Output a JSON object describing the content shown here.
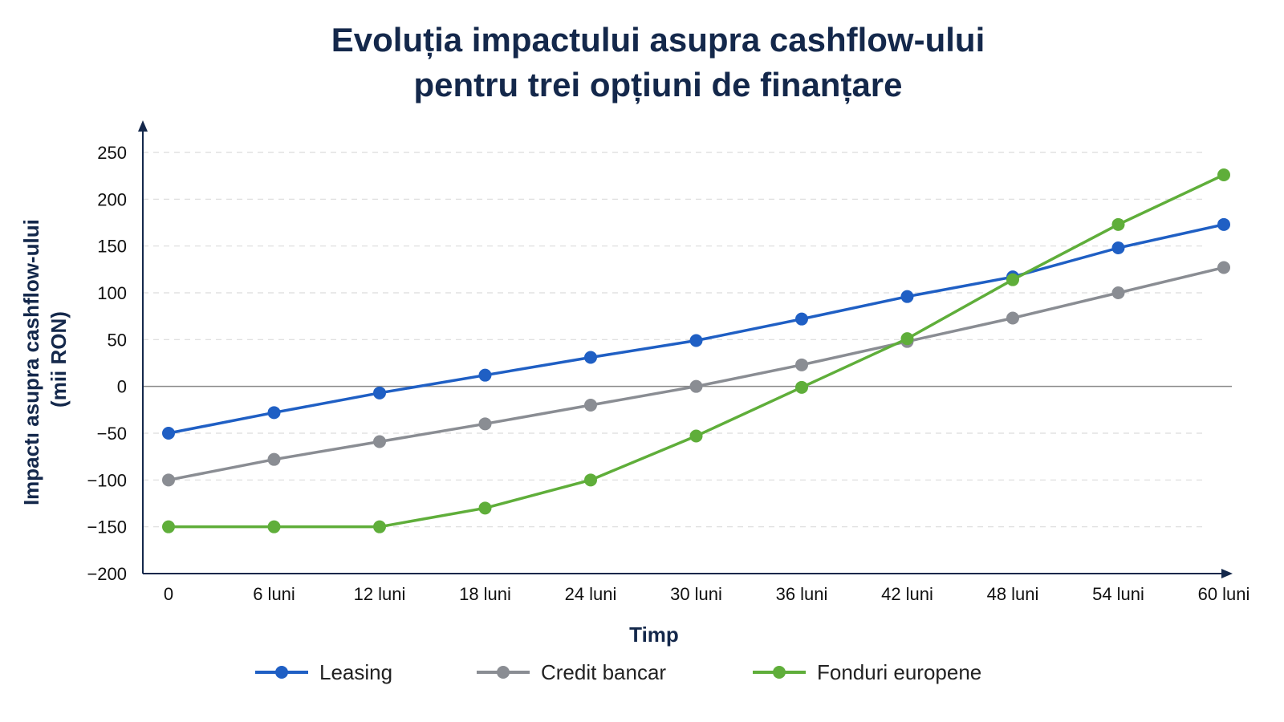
{
  "chart_data": {
    "type": "line",
    "title_lines": [
      "Evoluția impactului asupra cashflow-ului",
      "pentru trei opțiuni de finanțare"
    ],
    "xlabel": "Timp",
    "ylabel_lines": [
      "Impactı asupra cashflow-ului",
      "(mii RON)"
    ],
    "categories": [
      "0",
      "6 luni",
      "12 luni",
      "18 luni",
      "24 luni",
      "30 luni",
      "36 luni",
      "42 luni",
      "48 luni",
      "54 luni",
      "60 luni"
    ],
    "ylim": [
      -200,
      250
    ],
    "yticks": [
      250,
      200,
      150,
      100,
      50,
      0,
      -50,
      -100,
      -150,
      -200
    ],
    "ytick_labels": [
      "250",
      "200",
      "150",
      "100",
      "50",
      "0",
      "−50",
      "−100",
      "−150",
      "−200"
    ],
    "grid": true,
    "legend_position": "bottom",
    "series": [
      {
        "name": "Leasing",
        "color": "#1f5fc4",
        "values": [
          -50,
          -28,
          -7,
          12,
          31,
          49,
          72,
          96,
          117,
          148,
          173
        ]
      },
      {
        "name": "Credit bancar",
        "color": "#8a8d93",
        "values": [
          -100,
          -78,
          -59,
          -40,
          -20,
          0,
          23,
          48,
          73,
          100,
          127
        ]
      },
      {
        "name": "Fonduri europene",
        "color": "#5fae3a",
        "values": [
          -150,
          -150,
          -150,
          -130,
          -100,
          -53,
          -1,
          51,
          114,
          173,
          226
        ]
      }
    ]
  }
}
